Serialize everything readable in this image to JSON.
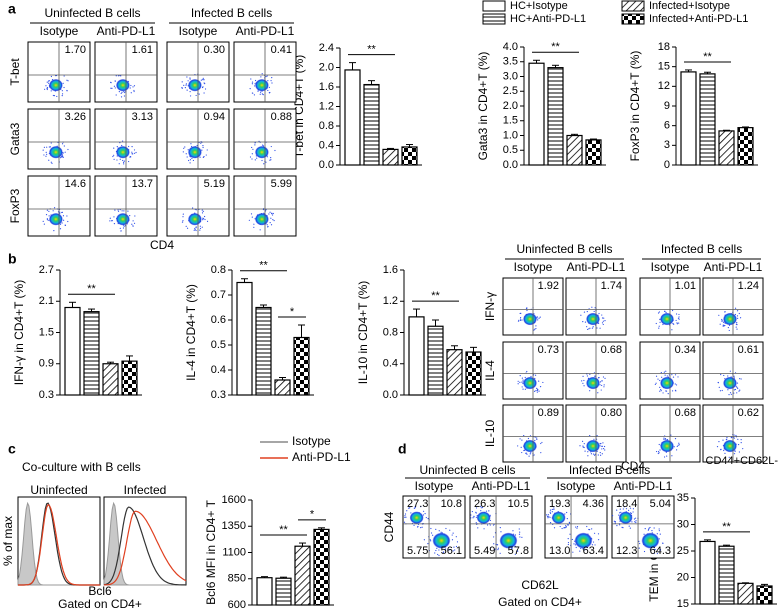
{
  "panel_labels": [
    "a",
    "b",
    "c",
    "d"
  ],
  "legend": [
    "HC+Isotype",
    "HC+Anti-PD-L1",
    "Infected+Isotype",
    "Infected+Anti-PD-L1"
  ],
  "chart_data": [
    {
      "type": "bar",
      "y_label": "T-bet in CD4+T (%)",
      "ylim": [
        0,
        2.4
      ],
      "yticks": [
        {
          "value": 0,
          "label": "0.0"
        },
        0.4,
        0.8,
        1.2,
        1.6,
        {
          "value": 2,
          "label": "2.0"
        },
        2.4
      ],
      "values": [
        1.95,
        1.65,
        0.32,
        0.37
      ],
      "errors": [
        0.15,
        0.08,
        0.02,
        0.05
      ],
      "significance": [
        {
          "label": "**",
          "bars": [
            0,
            2
          ]
        }
      ]
    },
    {
      "type": "bar",
      "y_label": "Gata3 in CD4+T (%)",
      "ylim": [
        0,
        4
      ],
      "yticks": [
        {
          "value": 0,
          "label": "0.0"
        },
        0.5,
        {
          "value": 1,
          "label": "1.0"
        },
        1.5,
        {
          "value": 2,
          "label": "2.0"
        },
        2.5,
        {
          "value": 3,
          "label": "3.0"
        },
        3.5,
        {
          "value": 4,
          "label": "4.0"
        }
      ],
      "values": [
        3.45,
        3.3,
        1.0,
        0.85
      ],
      "errors": [
        0.1,
        0.08,
        0.04,
        0.03
      ],
      "significance": [
        {
          "label": "**",
          "bars": [
            0,
            2
          ]
        }
      ]
    },
    {
      "type": "bar",
      "y_label": "FoxP3 in CD4+T (%)",
      "ylim": [
        0,
        18
      ],
      "yticks": [
        0,
        3,
        6,
        9,
        12,
        15,
        18
      ],
      "values": [
        14.2,
        13.9,
        5.2,
        5.7
      ],
      "errors": [
        0.3,
        0.25,
        0.1,
        0.1
      ],
      "significance": [
        {
          "label": "**",
          "bars": [
            0,
            2
          ]
        }
      ]
    },
    {
      "type": "bar",
      "y_label": "IFN-γ in CD4+T (%)",
      "ylim": [
        0.3,
        2.7
      ],
      "yticks": [
        0.3,
        0.9,
        1.5,
        2.1,
        2.7
      ],
      "values": [
        1.98,
        1.9,
        0.9,
        0.95
      ],
      "errors": [
        0.1,
        0.05,
        0.03,
        0.1
      ],
      "significance": [
        {
          "label": "**",
          "bars": [
            0,
            2
          ]
        }
      ]
    },
    {
      "type": "bar",
      "y_label": "IL-4 in CD4+T (%)",
      "ylim": [
        0.3,
        0.8
      ],
      "yticks": [
        0.3,
        0.4,
        0.5,
        0.6,
        0.7,
        0.8
      ],
      "values": [
        0.75,
        0.65,
        0.36,
        0.53
      ],
      "errors": [
        0.015,
        0.01,
        0.01,
        0.05
      ],
      "significance": [
        {
          "label": "**",
          "bars": [
            0,
            2
          ]
        },
        {
          "label": "*",
          "bars": [
            2,
            3
          ]
        }
      ]
    },
    {
      "type": "bar",
      "y_label": "IL-10 in CD4+T (%)",
      "ylim": [
        0,
        1.6
      ],
      "yticks": [
        {
          "value": 0,
          "label": "0.0"
        },
        0.4,
        0.8,
        1.2,
        1.6
      ],
      "values": [
        1.0,
        0.88,
        0.58,
        0.55
      ],
      "errors": [
        0.1,
        0.08,
        0.05,
        0.06
      ],
      "significance": [
        {
          "label": "**",
          "bars": [
            0,
            2
          ]
        }
      ]
    },
    {
      "type": "bar",
      "y_label": "Bcl6 MFI in CD4+ T",
      "ylim": [
        600,
        1600
      ],
      "yticks": [
        600,
        850,
        1100,
        1350,
        1600
      ],
      "values": [
        860,
        855,
        1160,
        1320
      ],
      "errors": [
        10,
        10,
        30,
        15
      ],
      "significance": [
        {
          "label": "**",
          "bars": [
            0,
            2
          ]
        },
        {
          "label": "*",
          "bars": [
            2,
            3
          ]
        }
      ]
    },
    {
      "type": "bar",
      "y_label": "TEM in CD4+T (%)",
      "ylim": [
        15,
        35
      ],
      "yticks": [
        15,
        20,
        25,
        30,
        35
      ],
      "values": [
        26.8,
        25.9,
        18.9,
        18.4
      ],
      "errors": [
        0.3,
        0.2,
        0.1,
        0.3
      ],
      "significance": [
        {
          "label": "**",
          "bars": [
            0,
            2
          ]
        }
      ]
    }
  ],
  "flow_a": {
    "groups": [
      "Uninfected B cells",
      "Infected B cells"
    ],
    "columns": [
      "Isotype",
      "Anti-PD-L1",
      "Isotype",
      "Anti-PD-L1"
    ],
    "rows": [
      {
        "label": "T-bet",
        "values": [
          "1.70",
          "1.61",
          "0.30",
          "0.41"
        ]
      },
      {
        "label": "Gata3",
        "values": [
          "3.26",
          "3.13",
          "0.94",
          "0.88"
        ]
      },
      {
        "label": "FoxP3",
        "values": [
          "14.6",
          "13.7",
          "5.19",
          "5.99"
        ]
      }
    ],
    "x_label": "CD4"
  },
  "flow_b": {
    "groups": [
      "Uninfected B cells",
      "Infected B cells"
    ],
    "columns": [
      "Isotype",
      "Anti-PD-L1",
      "Isotype",
      "Anti-PD-L1"
    ],
    "rows": [
      {
        "label": "IFN-γ",
        "values": [
          "1.92",
          "1.74",
          "1.01",
          "1.24"
        ]
      },
      {
        "label": "IL-4",
        "values": [
          "0.73",
          "0.68",
          "0.34",
          "0.61"
        ]
      },
      {
        "label": "IL-10",
        "values": [
          "0.89",
          "0.80",
          "0.68",
          "0.62"
        ]
      }
    ],
    "x_label": "CD4"
  },
  "histogram_c": {
    "title": "Co-culture with B cells",
    "panels": [
      "Uninfected",
      "Infected"
    ],
    "legend": [
      "Isotype",
      "Anti-PD-L1"
    ],
    "y_label": "% of max",
    "x_label": "Bcl6",
    "gate": "Gated on CD4+"
  },
  "flow_d": {
    "title": "CD44+CD62L-",
    "groups": [
      "Uninfected B cells",
      "Infected B cells"
    ],
    "columns": [
      "Isotype",
      "Anti-PD-L1",
      "Isotype",
      "Anti-PD-L1"
    ],
    "plots": [
      [
        "27.3",
        "10.8",
        "5.75",
        "56.1"
      ],
      [
        "26.3",
        "10.5",
        "5.49",
        "57.8"
      ],
      [
        "19.3",
        "4.36",
        "13.0",
        "63.4"
      ],
      [
        "18.4",
        "5.04",
        "12.3",
        "64.3"
      ]
    ],
    "y_label": "CD44",
    "x_label": "CD62L",
    "gate": "Gated on CD4+"
  }
}
